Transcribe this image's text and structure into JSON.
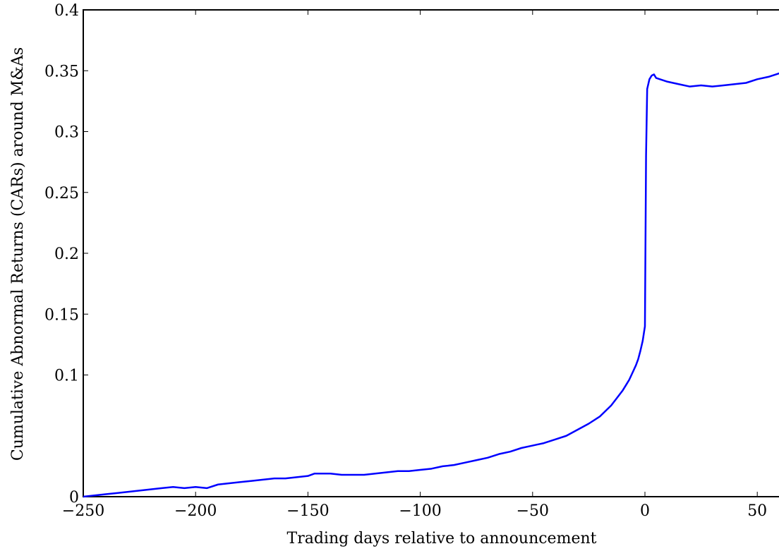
{
  "chart_data": {
    "type": "line",
    "title": "",
    "xlabel": "Trading days relative to announcement",
    "ylabel": "Cumulative Abnormal Returns (CARs) around M&As",
    "xlim": [
      -250,
      60
    ],
    "ylim": [
      0,
      0.4
    ],
    "x_ticks": [
      -250,
      -200,
      -150,
      -100,
      -50,
      0,
      50
    ],
    "x_tick_labels": [
      "−250",
      "−200",
      "−150",
      "−100",
      "−50",
      "0",
      "50"
    ],
    "y_ticks": [
      0,
      0.1,
      0.15,
      0.2,
      0.25,
      0.3,
      0.35,
      0.4
    ],
    "y_tick_labels": [
      "0",
      "0.1",
      "0.15",
      "0.2",
      "0.25",
      "0.3",
      "0.35",
      "0.4"
    ],
    "grid": false,
    "line_color": "#0000ff",
    "series": [
      {
        "x": [
          -250,
          -245,
          -240,
          -235,
          -230,
          -225,
          -220,
          -215,
          -210,
          -205,
          -200,
          -195,
          -190,
          -185,
          -180,
          -175,
          -170,
          -165,
          -160,
          -155,
          -150,
          -147,
          -145,
          -140,
          -135,
          -130,
          -125,
          -120,
          -115,
          -110,
          -105,
          -100,
          -95,
          -90,
          -85,
          -80,
          -75,
          -70,
          -65,
          -60,
          -55,
          -50,
          -45,
          -40,
          -35,
          -30,
          -25,
          -20,
          -15,
          -10,
          -7,
          -5,
          -4,
          -3,
          -2,
          -1,
          0,
          0.5,
          1,
          2,
          3,
          4,
          5,
          10,
          15,
          20,
          25,
          30,
          35,
          40,
          45,
          50,
          55,
          60
        ],
        "y": [
          0.0,
          0.001,
          0.002,
          0.003,
          0.004,
          0.005,
          0.006,
          0.007,
          0.008,
          0.007,
          0.008,
          0.007,
          0.01,
          0.011,
          0.012,
          0.013,
          0.014,
          0.015,
          0.015,
          0.016,
          0.017,
          0.019,
          0.019,
          0.019,
          0.018,
          0.018,
          0.018,
          0.019,
          0.02,
          0.021,
          0.021,
          0.022,
          0.023,
          0.025,
          0.026,
          0.028,
          0.03,
          0.032,
          0.035,
          0.037,
          0.04,
          0.042,
          0.044,
          0.047,
          0.05,
          0.055,
          0.06,
          0.066,
          0.075,
          0.087,
          0.096,
          0.104,
          0.108,
          0.113,
          0.12,
          0.128,
          0.14,
          0.28,
          0.335,
          0.343,
          0.346,
          0.347,
          0.344,
          0.341,
          0.339,
          0.337,
          0.338,
          0.337,
          0.338,
          0.339,
          0.34,
          0.343,
          0.345,
          0.348
        ]
      }
    ]
  }
}
